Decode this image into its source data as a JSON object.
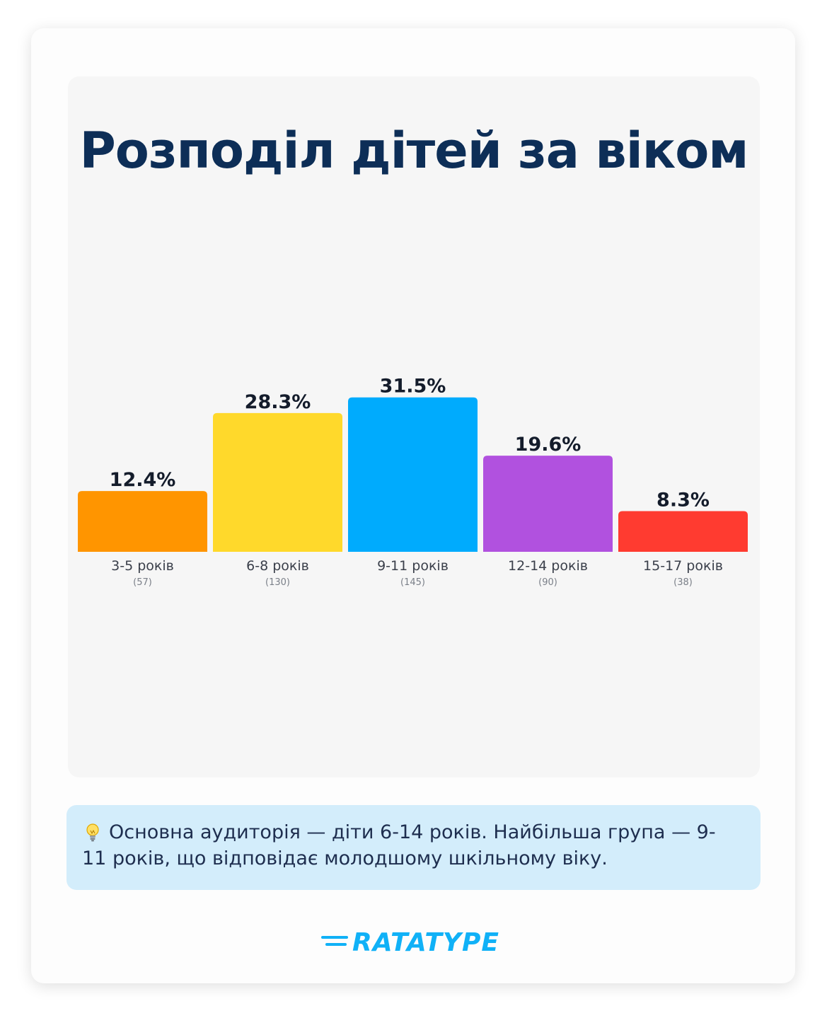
{
  "chart_data": {
    "type": "bar",
    "title": "Розподіл дітей за віком",
    "categories": [
      "3-5 років",
      "6-8 років",
      "9-11 років",
      "12-14 років",
      "15-17 років"
    ],
    "values": [
      12.4,
      28.3,
      31.5,
      19.6,
      8.3
    ],
    "value_labels": [
      "12.4%",
      "28.3%",
      "31.5%",
      "19.6%",
      "8.3%"
    ],
    "counts": [
      "(57)",
      "(130)",
      "(145)",
      "(90)",
      "(38)"
    ],
    "colors": [
      "#ff9500",
      "#ffd92b",
      "#00abfd",
      "#b151df",
      "#ff3b30"
    ],
    "ylim": [
      0,
      100
    ],
    "grid": false,
    "legend": "none"
  },
  "insight": {
    "icon": "lightbulb-icon",
    "text": "Основна аудиторія — діти 6-14 років. Найбільша група — 9-11 років, що відповідає молодшому шкільному віку."
  },
  "brand": {
    "name": "RATATYPE",
    "color": "#10b1f7"
  }
}
